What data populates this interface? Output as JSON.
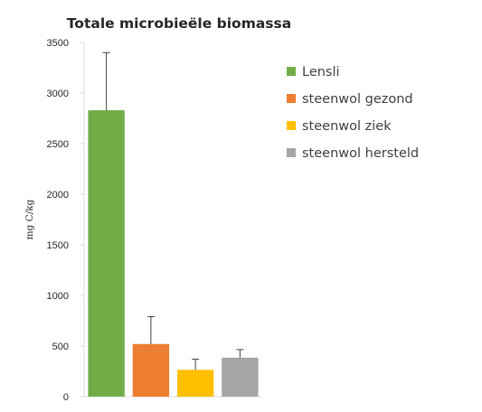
{
  "chart_data": {
    "type": "bar",
    "title": "Totale microbieële biomassa",
    "ylabel": "mg C/kg",
    "xlabel": "",
    "ylim": [
      0,
      3500
    ],
    "yticks": [
      0,
      500,
      1000,
      1500,
      2000,
      2500,
      3000,
      3500
    ],
    "grid": false,
    "legend_position": "right",
    "series": [
      {
        "name": "Lensli",
        "value": 2830,
        "error": 570,
        "color": "#70ad47"
      },
      {
        "name": "steenwol gezond",
        "value": 520,
        "error": 270,
        "color": "#ed7d31"
      },
      {
        "name": "steenwol ziek",
        "value": 265,
        "error": 105,
        "color": "#ffc000"
      },
      {
        "name": "steenwol hersteld",
        "value": 385,
        "error": 80,
        "color": "#a5a5a5"
      }
    ]
  }
}
